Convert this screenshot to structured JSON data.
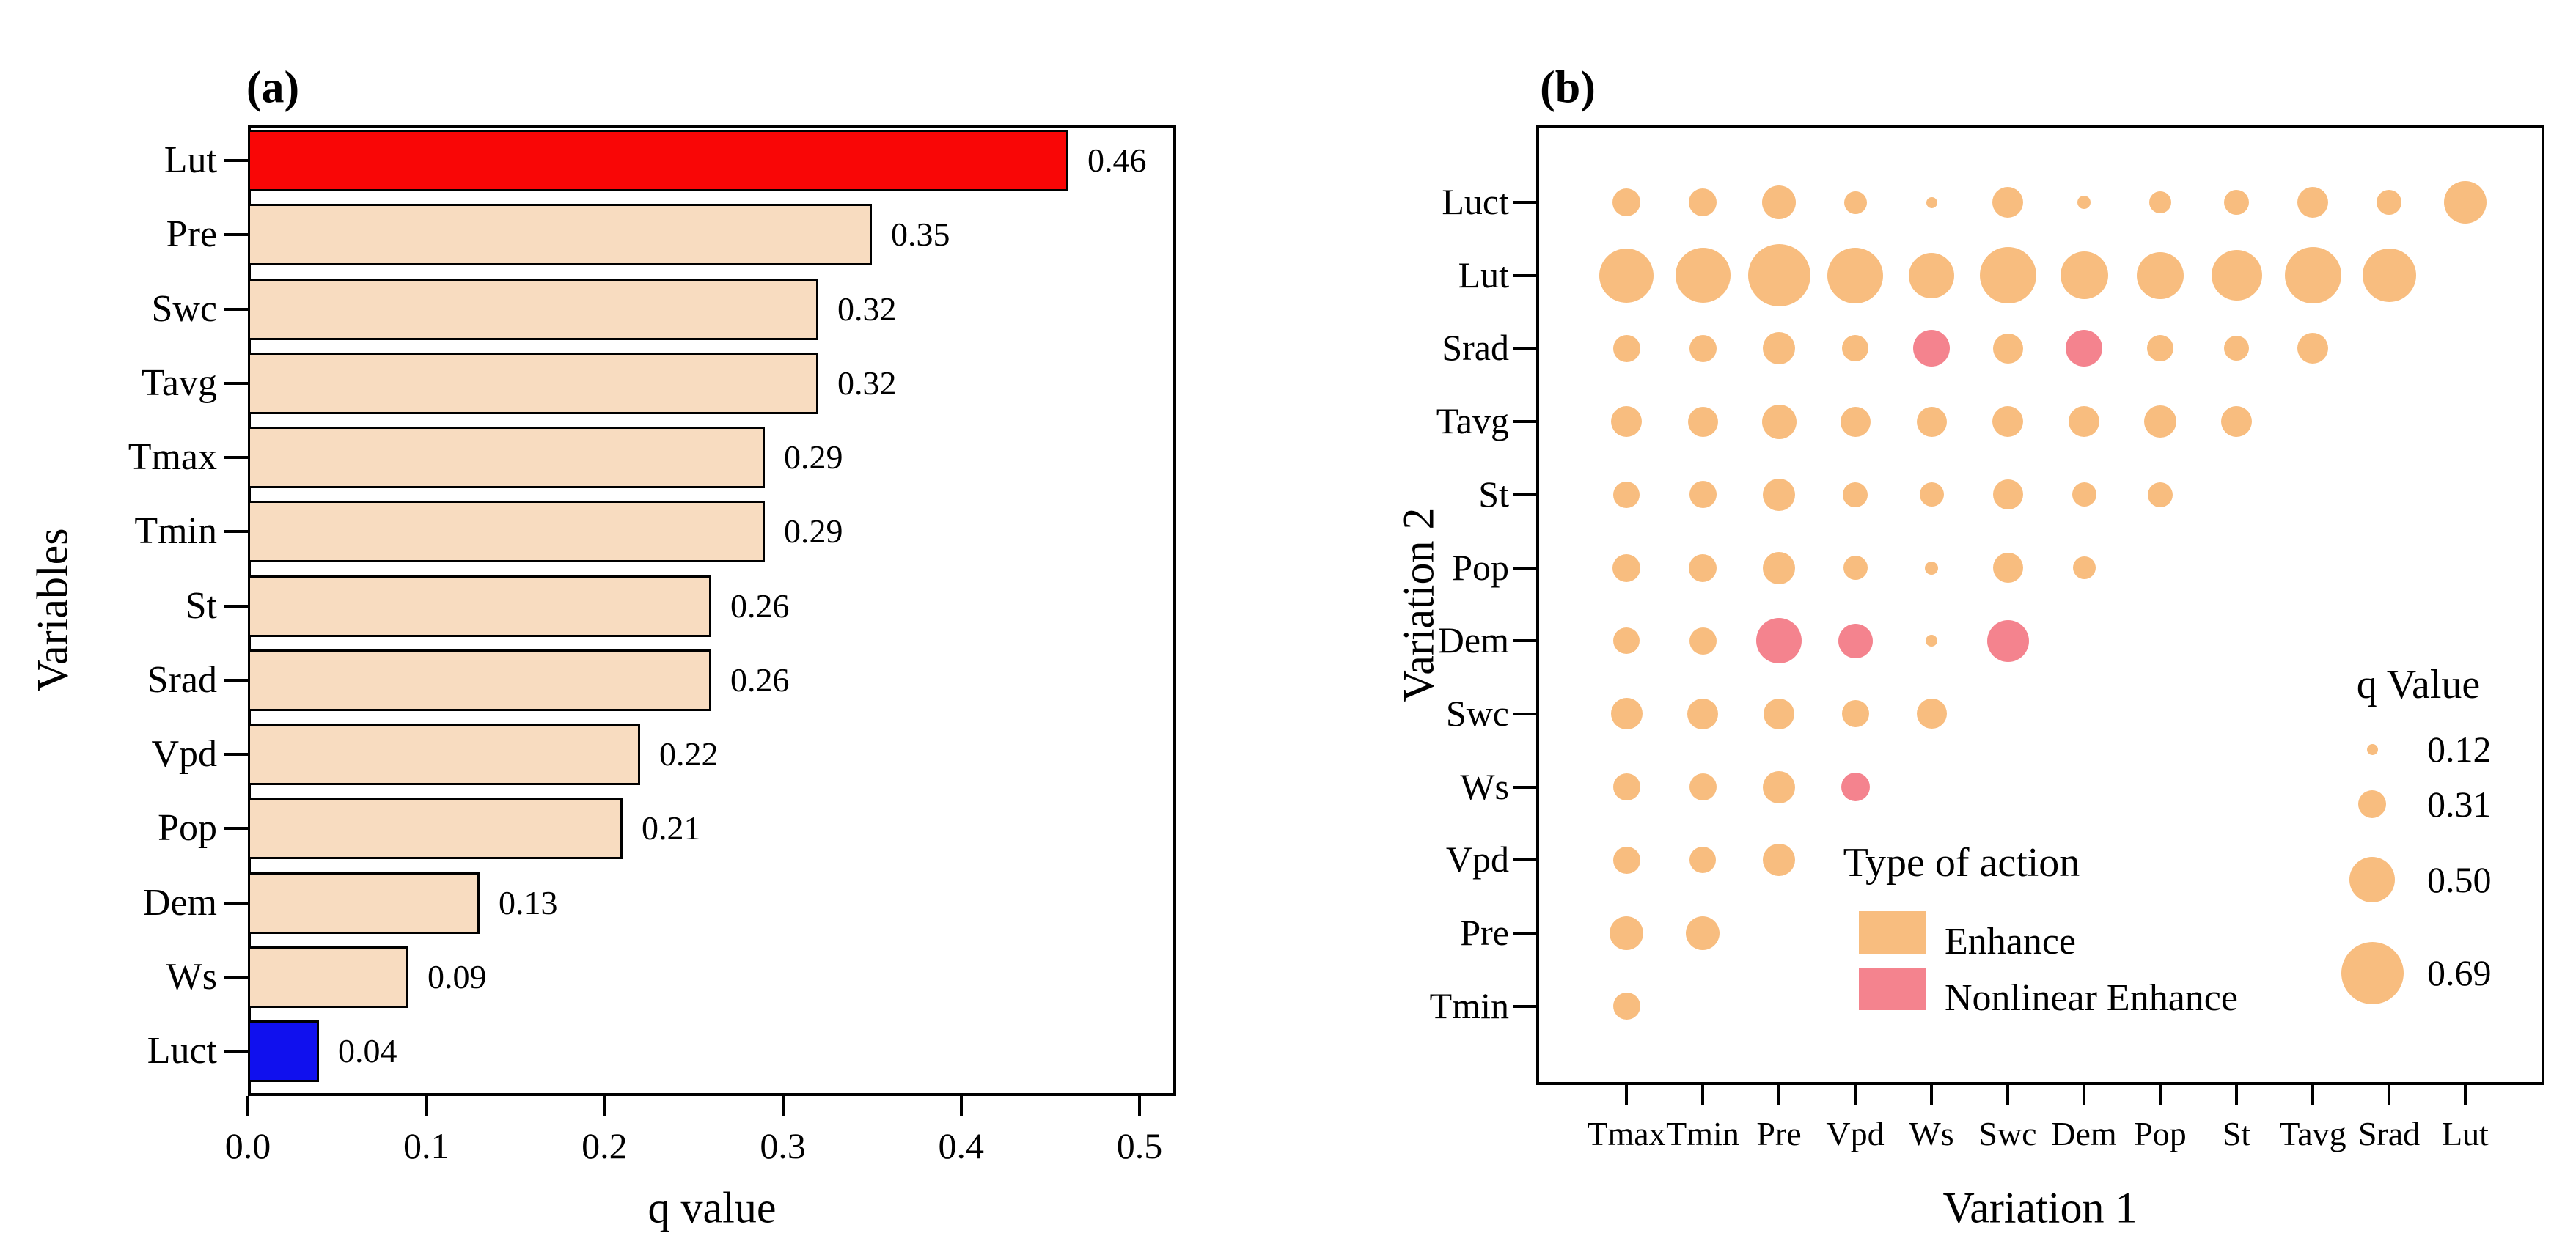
{
  "colors": {
    "enhance": "#F8BD7F",
    "nonlinear_enhance": "#F4838E",
    "bar_default": "#F8DCC0",
    "bar_highlight_max": "#F90606",
    "bar_highlight_min": "#1010EE",
    "axis": "#000000"
  },
  "chart_data": [
    {
      "type": "bar",
      "panel_label": "(a)",
      "xlabel": "q value",
      "ylabel": "Variables",
      "orientation": "horizontal",
      "xlim": [
        0.0,
        0.52
      ],
      "x_ticks": [
        "0.0",
        "0.1",
        "0.2",
        "0.3",
        "0.4",
        "0.5"
      ],
      "x_tick_values": [
        0.0,
        0.1,
        0.2,
        0.3,
        0.4,
        0.5
      ],
      "grid": false,
      "categories": [
        "Lut",
        "Pre",
        "Swc",
        "Tavg",
        "Tmax",
        "Tmin",
        "St",
        "Srad",
        "Vpd",
        "Pop",
        "Dem",
        "Ws",
        "Luct"
      ],
      "values": [
        0.46,
        0.35,
        0.32,
        0.32,
        0.29,
        0.29,
        0.26,
        0.26,
        0.22,
        0.21,
        0.13,
        0.09,
        0.04
      ],
      "value_labels": [
        "0.46",
        "0.35",
        "0.32",
        "0.32",
        "0.29",
        "0.29",
        "0.26",
        "0.26",
        "0.22",
        "0.21",
        "0.13",
        "0.09",
        "0.04"
      ],
      "bar_colors": [
        "#F90606",
        "#F8DCC0",
        "#F8DCC0",
        "#F8DCC0",
        "#F8DCC0",
        "#F8DCC0",
        "#F8DCC0",
        "#F8DCC0",
        "#F8DCC0",
        "#F8DCC0",
        "#F8DCC0",
        "#F8DCC0",
        "#1010EE"
      ]
    },
    {
      "type": "bubble",
      "panel_label": "(b)",
      "xlabel": "Variation 1",
      "ylabel": "Variation 2",
      "grid": false,
      "x_categories": [
        "Tmax",
        "Tmin",
        "Pre",
        "Vpd",
        "Ws",
        "Swc",
        "Dem",
        "Pop",
        "St",
        "Tavg",
        "Srad",
        "Lut"
      ],
      "y_categories": [
        "Luct",
        "Lut",
        "Srad",
        "Tavg",
        "St",
        "Pop",
        "Dem",
        "Swc",
        "Ws",
        "Vpd",
        "Pre",
        "Tmin"
      ],
      "points": [
        {
          "y": "Luct",
          "x": "Tmax",
          "q": 0.31,
          "action": "Enhance"
        },
        {
          "y": "Luct",
          "x": "Tmin",
          "q": 0.31,
          "action": "Enhance"
        },
        {
          "y": "Luct",
          "x": "Pre",
          "q": 0.37,
          "action": "Enhance"
        },
        {
          "y": "Luct",
          "x": "Vpd",
          "q": 0.25,
          "action": "Enhance"
        },
        {
          "y": "Luct",
          "x": "Ws",
          "q": 0.12,
          "action": "Enhance"
        },
        {
          "y": "Luct",
          "x": "Swc",
          "q": 0.34,
          "action": "Enhance"
        },
        {
          "y": "Luct",
          "x": "Dem",
          "q": 0.15,
          "action": "Enhance"
        },
        {
          "y": "Luct",
          "x": "Pop",
          "q": 0.24,
          "action": "Enhance"
        },
        {
          "y": "Luct",
          "x": "St",
          "q": 0.28,
          "action": "Enhance"
        },
        {
          "y": "Luct",
          "x": "Tavg",
          "q": 0.34,
          "action": "Enhance"
        },
        {
          "y": "Luct",
          "x": "Srad",
          "q": 0.28,
          "action": "Enhance"
        },
        {
          "y": "Luct",
          "x": "Lut",
          "q": 0.47,
          "action": "Enhance"
        },
        {
          "y": "Lut",
          "x": "Tmax",
          "q": 0.6,
          "action": "Enhance"
        },
        {
          "y": "Lut",
          "x": "Tmin",
          "q": 0.61,
          "action": "Enhance"
        },
        {
          "y": "Lut",
          "x": "Pre",
          "q": 0.69,
          "action": "Enhance"
        },
        {
          "y": "Lut",
          "x": "Vpd",
          "q": 0.62,
          "action": "Enhance"
        },
        {
          "y": "Lut",
          "x": "Ws",
          "q": 0.5,
          "action": "Enhance"
        },
        {
          "y": "Lut",
          "x": "Swc",
          "q": 0.63,
          "action": "Enhance"
        },
        {
          "y": "Lut",
          "x": "Dem",
          "q": 0.53,
          "action": "Enhance"
        },
        {
          "y": "Lut",
          "x": "Pop",
          "q": 0.52,
          "action": "Enhance"
        },
        {
          "y": "Lut",
          "x": "St",
          "q": 0.56,
          "action": "Enhance"
        },
        {
          "y": "Lut",
          "x": "Tavg",
          "q": 0.63,
          "action": "Enhance"
        },
        {
          "y": "Lut",
          "x": "Srad",
          "q": 0.59,
          "action": "Enhance"
        },
        {
          "y": "Srad",
          "x": "Tmax",
          "q": 0.3,
          "action": "Enhance"
        },
        {
          "y": "Srad",
          "x": "Tmin",
          "q": 0.3,
          "action": "Enhance"
        },
        {
          "y": "Srad",
          "x": "Pre",
          "q": 0.36,
          "action": "Enhance"
        },
        {
          "y": "Srad",
          "x": "Vpd",
          "q": 0.29,
          "action": "Enhance"
        },
        {
          "y": "Srad",
          "x": "Ws",
          "q": 0.41,
          "action": "Nonlinear Enhance"
        },
        {
          "y": "Srad",
          "x": "Swc",
          "q": 0.33,
          "action": "Enhance"
        },
        {
          "y": "Srad",
          "x": "Dem",
          "q": 0.41,
          "action": "Nonlinear Enhance"
        },
        {
          "y": "Srad",
          "x": "Pop",
          "q": 0.29,
          "action": "Enhance"
        },
        {
          "y": "Srad",
          "x": "St",
          "q": 0.28,
          "action": "Enhance"
        },
        {
          "y": "Srad",
          "x": "Tavg",
          "q": 0.34,
          "action": "Enhance"
        },
        {
          "y": "Tavg",
          "x": "Tmax",
          "q": 0.34,
          "action": "Enhance"
        },
        {
          "y": "Tavg",
          "x": "Tmin",
          "q": 0.33,
          "action": "Enhance"
        },
        {
          "y": "Tavg",
          "x": "Pre",
          "q": 0.38,
          "action": "Enhance"
        },
        {
          "y": "Tavg",
          "x": "Vpd",
          "q": 0.33,
          "action": "Enhance"
        },
        {
          "y": "Tavg",
          "x": "Ws",
          "q": 0.33,
          "action": "Enhance"
        },
        {
          "y": "Tavg",
          "x": "Swc",
          "q": 0.34,
          "action": "Enhance"
        },
        {
          "y": "Tavg",
          "x": "Dem",
          "q": 0.34,
          "action": "Enhance"
        },
        {
          "y": "Tavg",
          "x": "Pop",
          "q": 0.36,
          "action": "Enhance"
        },
        {
          "y": "Tavg",
          "x": "St",
          "q": 0.34,
          "action": "Enhance"
        },
        {
          "y": "St",
          "x": "Tmax",
          "q": 0.29,
          "action": "Enhance"
        },
        {
          "y": "St",
          "x": "Tmin",
          "q": 0.3,
          "action": "Enhance"
        },
        {
          "y": "St",
          "x": "Pre",
          "q": 0.36,
          "action": "Enhance"
        },
        {
          "y": "St",
          "x": "Vpd",
          "q": 0.28,
          "action": "Enhance"
        },
        {
          "y": "St",
          "x": "Ws",
          "q": 0.27,
          "action": "Enhance"
        },
        {
          "y": "St",
          "x": "Swc",
          "q": 0.33,
          "action": "Enhance"
        },
        {
          "y": "St",
          "x": "Dem",
          "q": 0.27,
          "action": "Enhance"
        },
        {
          "y": "St",
          "x": "Pop",
          "q": 0.28,
          "action": "Enhance"
        },
        {
          "y": "Pop",
          "x": "Tmax",
          "q": 0.31,
          "action": "Enhance"
        },
        {
          "y": "Pop",
          "x": "Tmin",
          "q": 0.31,
          "action": "Enhance"
        },
        {
          "y": "Pop",
          "x": "Pre",
          "q": 0.36,
          "action": "Enhance"
        },
        {
          "y": "Pop",
          "x": "Vpd",
          "q": 0.27,
          "action": "Enhance"
        },
        {
          "y": "Pop",
          "x": "Ws",
          "q": 0.15,
          "action": "Enhance"
        },
        {
          "y": "Pop",
          "x": "Swc",
          "q": 0.33,
          "action": "Enhance"
        },
        {
          "y": "Pop",
          "x": "Dem",
          "q": 0.25,
          "action": "Enhance"
        },
        {
          "y": "Dem",
          "x": "Tmax",
          "q": 0.29,
          "action": "Enhance"
        },
        {
          "y": "Dem",
          "x": "Tmin",
          "q": 0.3,
          "action": "Enhance"
        },
        {
          "y": "Dem",
          "x": "Pre",
          "q": 0.5,
          "action": "Nonlinear Enhance"
        },
        {
          "y": "Dem",
          "x": "Vpd",
          "q": 0.38,
          "action": "Nonlinear Enhance"
        },
        {
          "y": "Dem",
          "x": "Ws",
          "q": 0.13,
          "action": "Enhance"
        },
        {
          "y": "Dem",
          "x": "Swc",
          "q": 0.46,
          "action": "Nonlinear Enhance"
        },
        {
          "y": "Swc",
          "x": "Tmax",
          "q": 0.35,
          "action": "Enhance"
        },
        {
          "y": "Swc",
          "x": "Tmin",
          "q": 0.34,
          "action": "Enhance"
        },
        {
          "y": "Swc",
          "x": "Pre",
          "q": 0.34,
          "action": "Enhance"
        },
        {
          "y": "Swc",
          "x": "Vpd",
          "q": 0.3,
          "action": "Enhance"
        },
        {
          "y": "Swc",
          "x": "Ws",
          "q": 0.33,
          "action": "Enhance"
        },
        {
          "y": "Ws",
          "x": "Tmax",
          "q": 0.3,
          "action": "Enhance"
        },
        {
          "y": "Ws",
          "x": "Tmin",
          "q": 0.3,
          "action": "Enhance"
        },
        {
          "y": "Ws",
          "x": "Pre",
          "q": 0.36,
          "action": "Enhance"
        },
        {
          "y": "Ws",
          "x": "Vpd",
          "q": 0.32,
          "action": "Nonlinear Enhance"
        },
        {
          "y": "Vpd",
          "x": "Tmax",
          "q": 0.3,
          "action": "Enhance"
        },
        {
          "y": "Vpd",
          "x": "Tmin",
          "q": 0.29,
          "action": "Enhance"
        },
        {
          "y": "Vpd",
          "x": "Pre",
          "q": 0.36,
          "action": "Enhance"
        },
        {
          "y": "Pre",
          "x": "Tmax",
          "q": 0.37,
          "action": "Enhance"
        },
        {
          "y": "Pre",
          "x": "Tmin",
          "q": 0.37,
          "action": "Enhance"
        },
        {
          "y": "Tmin",
          "x": "Tmax",
          "q": 0.3,
          "action": "Enhance"
        }
      ],
      "size_legend": {
        "title": "q Value",
        "entries": [
          {
            "value": 0.12,
            "label": "0.12"
          },
          {
            "value": 0.31,
            "label": "0.31"
          },
          {
            "value": 0.5,
            "label": "0.50"
          },
          {
            "value": 0.69,
            "label": "0.69"
          }
        ]
      },
      "action_legend": {
        "title": "Type of action",
        "entries": [
          {
            "key": "enhance",
            "label": "Enhance"
          },
          {
            "key": "nonlinear_enhance",
            "label": "Nonlinear Enhance"
          }
        ]
      }
    }
  ]
}
